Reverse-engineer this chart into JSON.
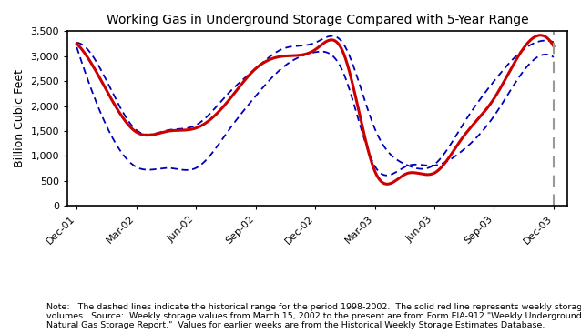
{
  "title": "Working Gas in Underground Storage Compared with 5-Year Range",
  "ylabel": "Billion Cubic Feet",
  "ylim": [
    0,
    3500
  ],
  "yticks": [
    0,
    500,
    1000,
    1500,
    2000,
    2500,
    3000,
    3500
  ],
  "xtick_labels": [
    "Dec-01",
    "Mar-02",
    "Jun-02",
    "Sep-02",
    "Dec-02",
    "Mar-03",
    "Jun-03",
    "Sep-03",
    "Dec-03"
  ],
  "note_text": "Note:   The dashed lines indicate the historical range for the period 1998-2002.  The solid red line represents weekly storage\nvolumes.  Source:  Weekly storage values from March 15, 2002 to the present are from Form EIA-912 \"Weekly Underground\nNatural Gas Storage Report.\"  Values for earlier weeks are from the Historical Weekly Storage Estimates Database.",
  "red_line_color": "#cc0000",
  "blue_dash_color": "#0000bb",
  "vline_color": "#999999",
  "bg_color": "#ffffff",
  "plot_bg_color": "#ffffff",
  "red_data": {
    "x": [
      0,
      6,
      13,
      20,
      26,
      33,
      39,
      45,
      52,
      58,
      65,
      72,
      78,
      84,
      91,
      97,
      104
    ],
    "y": [
      3250,
      2400,
      1480,
      1500,
      1560,
      2100,
      2750,
      3000,
      3130,
      3100,
      700,
      650,
      660,
      1350,
      2150,
      3100,
      3200
    ]
  },
  "upper_data": {
    "x": [
      0,
      6,
      13,
      20,
      26,
      33,
      39,
      45,
      52,
      58,
      65,
      72,
      78,
      84,
      91,
      97,
      104
    ],
    "y": [
      3270,
      2600,
      1520,
      1520,
      1620,
      2250,
      2750,
      3150,
      3270,
      3270,
      1550,
      820,
      830,
      1600,
      2500,
      3100,
      3280
    ]
  },
  "lower_data": {
    "x": [
      0,
      6,
      13,
      20,
      26,
      33,
      39,
      45,
      52,
      58,
      65,
      72,
      78,
      84,
      91,
      97,
      104
    ],
    "y": [
      3180,
      1700,
      780,
      760,
      760,
      1500,
      2200,
      2780,
      3080,
      2700,
      800,
      800,
      810,
      1100,
      1800,
      2650,
      2980
    ]
  },
  "xtick_pos": [
    0,
    13,
    26,
    39,
    52,
    65,
    78,
    91,
    104
  ],
  "vline_x": 104
}
